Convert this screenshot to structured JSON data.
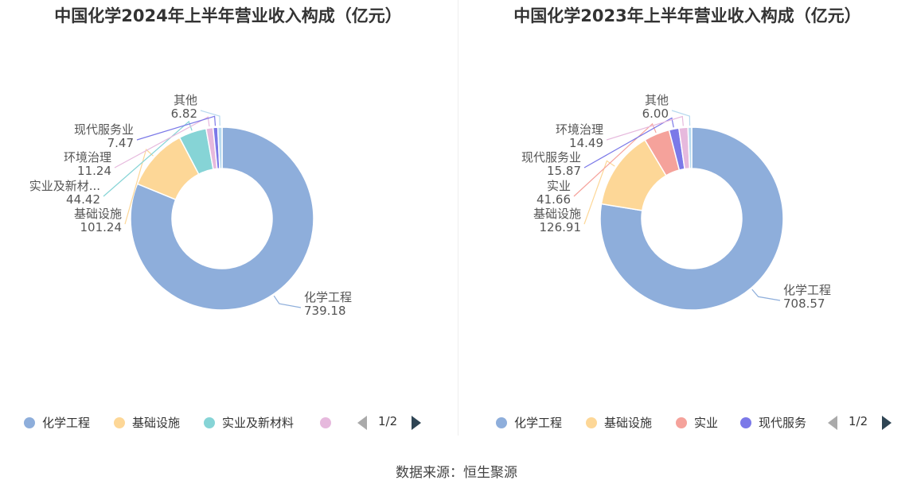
{
  "source_text": "数据来源：恒生聚源",
  "chart_data": [
    {
      "type": "pie",
      "title": "中国化学2024年上半年营业收入构成（亿元）",
      "slices": [
        {
          "label": "化学工程",
          "value": 739.18,
          "value_label": "739.18",
          "color": "#8eaedb"
        },
        {
          "label": "基础设施",
          "value": 101.24,
          "value_label": "101.24",
          "color": "#fdd797"
        },
        {
          "label": "实业及新材...",
          "value": 44.42,
          "value_label": "44.42",
          "color": "#86d4d6"
        },
        {
          "label": "环境治理",
          "value": 11.24,
          "value_label": "11.24",
          "color": "#e6b9dd"
        },
        {
          "label": "现代服务业",
          "value": 7.47,
          "value_label": "7.47",
          "color": "#7b79e8"
        },
        {
          "label": "其他",
          "value": 6.82,
          "value_label": "6.82",
          "color": "#b6d9ef"
        }
      ],
      "legend": {
        "items": [
          {
            "label": "化学工程",
            "color": "#8eaedb"
          },
          {
            "label": "基础设施",
            "color": "#fdd797"
          },
          {
            "label": "实业及新材料",
            "color": "#86d4d6"
          },
          {
            "label": "",
            "color": "#e6b9dd"
          }
        ],
        "page": "1/2"
      }
    },
    {
      "type": "pie",
      "title": "中国化学2023年上半年营业收入构成（亿元）",
      "slices": [
        {
          "label": "化学工程",
          "value": 708.57,
          "value_label": "708.57",
          "color": "#8eaedb"
        },
        {
          "label": "基础设施",
          "value": 126.91,
          "value_label": "126.91",
          "color": "#fdd797"
        },
        {
          "label": "实业",
          "value": 41.66,
          "value_label": "41.66",
          "color": "#f5a29b"
        },
        {
          "label": "现代服务业",
          "value": 15.87,
          "value_label": "15.87",
          "color": "#7b79e8"
        },
        {
          "label": "环境治理",
          "value": 14.49,
          "value_label": "14.49",
          "color": "#e6b9dd"
        },
        {
          "label": "其他",
          "value": 6.0,
          "value_label": "6.00",
          "color": "#b6d9ef"
        }
      ],
      "legend": {
        "items": [
          {
            "label": "化学工程",
            "color": "#8eaedb"
          },
          {
            "label": "基础设施",
            "color": "#fdd797"
          },
          {
            "label": "实业",
            "color": "#f5a29b"
          },
          {
            "label": "现代服务",
            "color": "#7b79e8"
          }
        ],
        "page": "1/2"
      }
    }
  ]
}
